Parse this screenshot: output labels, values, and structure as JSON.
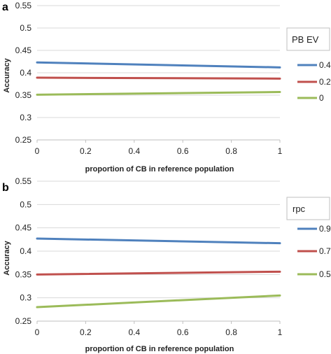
{
  "chart_data": [
    {
      "type": "line",
      "panel_label": "a",
      "x": [
        0,
        1
      ],
      "x_ticks": [
        "0",
        "0.2",
        "0.4",
        "0.6",
        "0.8",
        "1"
      ],
      "y_ticks": [
        "0.25",
        "0.3",
        "0.35",
        "0.4",
        "0.45",
        "0.5",
        "0.55"
      ],
      "xlim": [
        0,
        1
      ],
      "ylim": [
        0.25,
        0.55
      ],
      "xlabel": "proportion of CB in reference population",
      "ylabel": "Accuracy",
      "grid": "horizontal",
      "legend_title": "PB EV",
      "legend_position": "right",
      "series": [
        {
          "name": "0.4",
          "color": "#4f81bd",
          "values": [
            0.423,
            0.412
          ]
        },
        {
          "name": "0.2",
          "color": "#c0504d",
          "values": [
            0.389,
            0.387
          ]
        },
        {
          "name": "0",
          "color": "#9bbb59",
          "values": [
            0.351,
            0.357
          ]
        }
      ]
    },
    {
      "type": "line",
      "panel_label": "b",
      "x": [
        0,
        1
      ],
      "x_ticks": [
        "0",
        "0.2",
        "0.4",
        "0.6",
        "0.8",
        "1"
      ],
      "y_ticks": [
        "0.25",
        "0.3",
        "0.35",
        "0.4",
        "0.45",
        "0.5",
        "0.55"
      ],
      "xlim": [
        0,
        1
      ],
      "ylim": [
        0.25,
        0.55
      ],
      "xlabel": "proportion of CB in reference population",
      "ylabel": "Accuracy",
      "grid": "horizontal",
      "legend_title": "rpc",
      "legend_position": "right",
      "series": [
        {
          "name": "0.9",
          "color": "#4f81bd",
          "values": [
            0.427,
            0.417
          ]
        },
        {
          "name": "0.7",
          "color": "#c0504d",
          "values": [
            0.35,
            0.356
          ]
        },
        {
          "name": "0.5",
          "color": "#9bbb59",
          "values": [
            0.28,
            0.305
          ]
        }
      ]
    }
  ]
}
